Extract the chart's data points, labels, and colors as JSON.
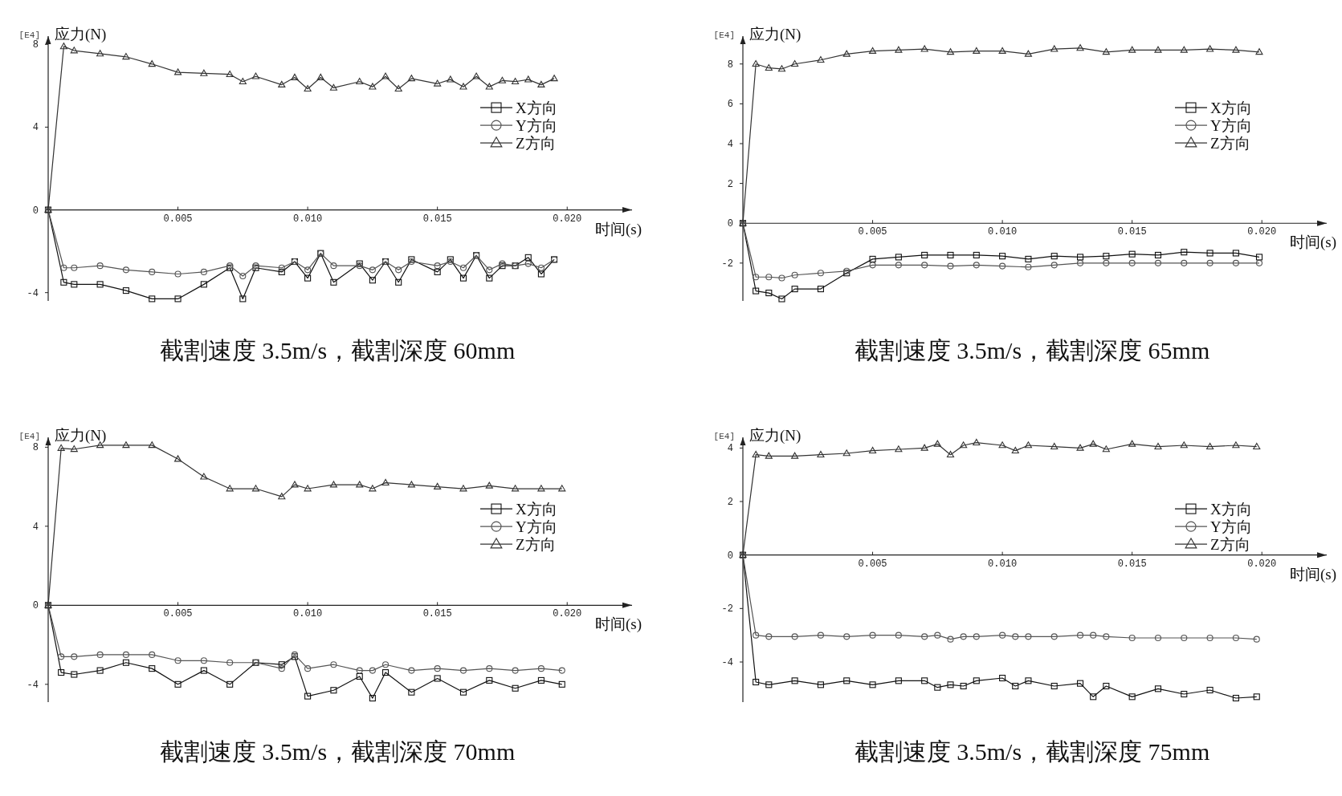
{
  "chart_data": [
    {
      "type": "line",
      "title": "截割速度 3.5m/s，截割深度 60mm",
      "xlabel": "时间(s)",
      "ylabel": "应力(N)",
      "annotations": [
        "[E4]"
      ],
      "legend": "top right",
      "grid": false,
      "x": [
        0,
        0.0006,
        0.001,
        0.002,
        0.003,
        0.004,
        0.005,
        0.006,
        0.007,
        0.0075,
        0.008,
        0.009,
        0.0095,
        0.01,
        0.0105,
        0.011,
        0.012,
        0.0125,
        0.013,
        0.0135,
        0.014,
        0.015,
        0.0155,
        0.016,
        0.0165,
        0.017,
        0.0175,
        0.018,
        0.0185,
        0.019,
        0.0195
      ],
      "xlim": [
        0,
        0.0225
      ],
      "ylim": [
        -4.4,
        8.4
      ],
      "xticks": [
        {
          "value": 0.005,
          "label": "0.005"
        },
        {
          "value": 0.01,
          "label": "0.010"
        },
        {
          "value": 0.015,
          "label": "0.015"
        },
        {
          "value": 0.02,
          "label": "0.020"
        }
      ],
      "yticks": [
        -4,
        0,
        4,
        8
      ],
      "series": [
        {
          "name": "X方向",
          "color": "#111111",
          "marker": "square",
          "values": [
            0,
            -3.5,
            -3.6,
            -3.6,
            -3.9,
            -4.3,
            -4.3,
            -3.6,
            -2.8,
            -4.3,
            -2.8,
            -3.0,
            -2.5,
            -3.3,
            -2.1,
            -3.5,
            -2.6,
            -3.4,
            -2.5,
            -3.5,
            -2.4,
            -3.0,
            -2.4,
            -3.3,
            -2.2,
            -3.3,
            -2.7,
            -2.7,
            -2.3,
            -3.1,
            -2.4
          ]
        },
        {
          "name": "Y方向",
          "color": "#555555",
          "marker": "circle",
          "values": [
            0,
            -2.8,
            -2.8,
            -2.7,
            -2.9,
            -3.0,
            -3.1,
            -3.0,
            -2.7,
            -3.2,
            -2.7,
            -2.8,
            -2.5,
            -2.9,
            -2.1,
            -2.7,
            -2.7,
            -2.9,
            -2.5,
            -2.9,
            -2.5,
            -2.7,
            -2.5,
            -2.8,
            -2.2,
            -2.9,
            -2.6,
            -2.7,
            -2.6,
            -2.8,
            -2.4
          ]
        },
        {
          "name": "Z方向",
          "color": "#333333",
          "marker": "triangle",
          "values": [
            0,
            7.9,
            7.7,
            7.55,
            7.4,
            7.05,
            6.65,
            6.6,
            6.55,
            6.2,
            6.45,
            6.05,
            6.4,
            5.85,
            6.4,
            5.9,
            6.2,
            5.95,
            6.45,
            5.85,
            6.35,
            6.1,
            6.3,
            5.95,
            6.45,
            5.95,
            6.25,
            6.2,
            6.3,
            6.05,
            6.35
          ]
        }
      ]
    },
    {
      "type": "line",
      "title": "截割速度 3.5m/s，截割深度 65mm",
      "xlabel": "时间(s)",
      "ylabel": "应力(N)",
      "annotations": [
        "[E4]"
      ],
      "legend": "top right",
      "grid": false,
      "x": [
        0,
        0.0005,
        0.001,
        0.0015,
        0.002,
        0.003,
        0.004,
        0.005,
        0.006,
        0.007,
        0.008,
        0.009,
        0.01,
        0.011,
        0.012,
        0.013,
        0.014,
        0.015,
        0.016,
        0.017,
        0.018,
        0.019,
        0.0199
      ],
      "xlim": [
        0,
        0.0225
      ],
      "ylim": [
        -3.9,
        9.4
      ],
      "xticks": [
        {
          "value": 0.005,
          "label": "0.005"
        },
        {
          "value": 0.01,
          "label": "0.010"
        },
        {
          "value": 0.015,
          "label": "0.015"
        },
        {
          "value": 0.02,
          "label": "0.020"
        }
      ],
      "yticks": [
        -2,
        0,
        2,
        4,
        6,
        8
      ],
      "series": [
        {
          "name": "X方向",
          "color": "#111111",
          "marker": "square",
          "values": [
            0,
            -3.4,
            -3.5,
            -3.8,
            -3.3,
            -3.3,
            -2.5,
            -1.8,
            -1.7,
            -1.6,
            -1.6,
            -1.6,
            -1.65,
            -1.8,
            -1.65,
            -1.7,
            -1.65,
            -1.55,
            -1.6,
            -1.45,
            -1.5,
            -1.5,
            -1.7
          ]
        },
        {
          "name": "Y方向",
          "color": "#555555",
          "marker": "circle",
          "values": [
            0,
            -2.7,
            -2.7,
            -2.75,
            -2.6,
            -2.5,
            -2.4,
            -2.1,
            -2.1,
            -2.1,
            -2.15,
            -2.1,
            -2.15,
            -2.2,
            -2.1,
            -2.0,
            -2.0,
            -2.0,
            -2.0,
            -2.0,
            -2.0,
            -2.0,
            -2.0
          ]
        },
        {
          "name": "Z方向",
          "color": "#333333",
          "marker": "triangle",
          "values": [
            0,
            8.0,
            7.8,
            7.75,
            8.0,
            8.2,
            8.5,
            8.65,
            8.7,
            8.75,
            8.6,
            8.65,
            8.65,
            8.5,
            8.75,
            8.8,
            8.6,
            8.7,
            8.7,
            8.7,
            8.75,
            8.7,
            8.6
          ]
        }
      ]
    },
    {
      "type": "line",
      "title": "截割速度 3.5m/s，截割深度 70mm",
      "xlabel": "时间(s)",
      "ylabel": "应力(N)",
      "annotations": [
        "[E4]"
      ],
      "legend": "top right",
      "grid": false,
      "x": [
        0,
        0.0005,
        0.001,
        0.002,
        0.003,
        0.004,
        0.005,
        0.006,
        0.007,
        0.008,
        0.009,
        0.0095,
        0.01,
        0.011,
        0.012,
        0.0125,
        0.013,
        0.014,
        0.015,
        0.016,
        0.017,
        0.018,
        0.019,
        0.0198
      ],
      "xlim": [
        0,
        0.0225
      ],
      "ylim": [
        -4.9,
        8.5
      ],
      "xticks": [
        {
          "value": 0.005,
          "label": "0.005"
        },
        {
          "value": 0.01,
          "label": "0.010"
        },
        {
          "value": 0.015,
          "label": "0.015"
        },
        {
          "value": 0.02,
          "label": "0.020"
        }
      ],
      "yticks": [
        -4,
        0,
        4,
        8
      ],
      "series": [
        {
          "name": "X方向",
          "color": "#111111",
          "marker": "square",
          "values": [
            0,
            -3.4,
            -3.5,
            -3.3,
            -2.9,
            -3.2,
            -4.0,
            -3.3,
            -4.0,
            -2.9,
            -3.0,
            -2.6,
            -4.6,
            -4.3,
            -3.6,
            -4.7,
            -3.4,
            -4.4,
            -3.7,
            -4.4,
            -3.8,
            -4.2,
            -3.8,
            -4.0
          ]
        },
        {
          "name": "Y方向",
          "color": "#555555",
          "marker": "circle",
          "values": [
            0,
            -2.6,
            -2.6,
            -2.5,
            -2.5,
            -2.5,
            -2.8,
            -2.8,
            -2.9,
            -2.9,
            -3.2,
            -2.5,
            -3.2,
            -3.0,
            -3.3,
            -3.3,
            -3.0,
            -3.3,
            -3.2,
            -3.3,
            -3.2,
            -3.3,
            -3.2,
            -3.3
          ]
        },
        {
          "name": "Z方向",
          "color": "#333333",
          "marker": "triangle",
          "values": [
            0,
            7.95,
            7.9,
            8.1,
            8.1,
            8.1,
            7.4,
            6.5,
            5.9,
            5.9,
            5.5,
            6.1,
            5.9,
            6.1,
            6.1,
            5.9,
            6.2,
            6.1,
            6.0,
            5.9,
            6.05,
            5.9,
            5.9,
            5.9
          ]
        }
      ]
    },
    {
      "type": "line",
      "title": "截割速度 3.5m/s，截割深度 75mm",
      "xlabel": "时间(s)",
      "ylabel": "应力(N)",
      "annotations": [
        "[E4]"
      ],
      "legend": "top right",
      "grid": false,
      "x": [
        0,
        0.0005,
        0.001,
        0.002,
        0.003,
        0.004,
        0.005,
        0.006,
        0.007,
        0.0075,
        0.008,
        0.0085,
        0.009,
        0.01,
        0.0105,
        0.011,
        0.012,
        0.013,
        0.0135,
        0.014,
        0.015,
        0.016,
        0.017,
        0.018,
        0.019,
        0.0198
      ],
      "xlim": [
        0,
        0.0225
      ],
      "ylim": [
        -5.5,
        4.4
      ],
      "xticks": [
        {
          "value": 0.005,
          "label": "0.005"
        },
        {
          "value": 0.01,
          "label": "0.010"
        },
        {
          "value": 0.015,
          "label": "0.015"
        },
        {
          "value": 0.02,
          "label": "0.020"
        }
      ],
      "yticks": [
        -4,
        -2,
        0,
        2,
        4
      ],
      "series": [
        {
          "name": "X方向",
          "color": "#111111",
          "marker": "square",
          "values": [
            0,
            -4.75,
            -4.85,
            -4.7,
            -4.85,
            -4.7,
            -4.85,
            -4.7,
            -4.7,
            -4.95,
            -4.85,
            -4.9,
            -4.7,
            -4.6,
            -4.9,
            -4.7,
            -4.9,
            -4.8,
            -5.3,
            -4.9,
            -5.3,
            -5.0,
            -5.2,
            -5.05,
            -5.35,
            -5.3
          ]
        },
        {
          "name": "Y方向",
          "color": "#555555",
          "marker": "circle",
          "values": [
            0,
            -3.0,
            -3.05,
            -3.05,
            -3.0,
            -3.05,
            -3.0,
            -3.0,
            -3.05,
            -3.0,
            -3.15,
            -3.05,
            -3.05,
            -3.0,
            -3.05,
            -3.05,
            -3.05,
            -3.0,
            -3.0,
            -3.05,
            -3.1,
            -3.1,
            -3.1,
            -3.1,
            -3.1,
            -3.15
          ]
        },
        {
          "name": "Z方向",
          "color": "#333333",
          "marker": "triangle",
          "values": [
            0,
            3.75,
            3.7,
            3.7,
            3.75,
            3.8,
            3.9,
            3.95,
            4.0,
            4.15,
            3.75,
            4.1,
            4.2,
            4.1,
            3.9,
            4.1,
            4.05,
            4.0,
            4.15,
            3.95,
            4.15,
            4.05,
            4.1,
            4.05,
            4.1,
            4.05
          ]
        }
      ]
    }
  ]
}
